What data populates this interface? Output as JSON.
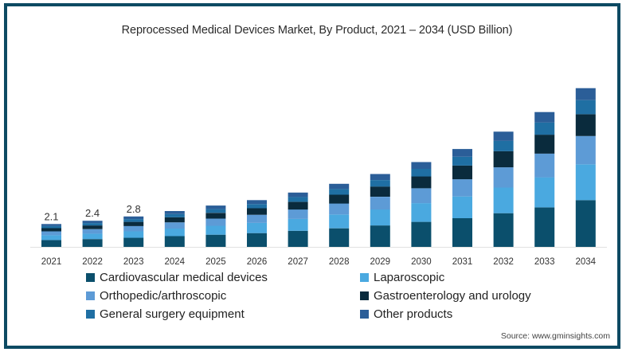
{
  "chart_data": {
    "type": "bar",
    "stacked": true,
    "title": "Reprocessed Medical Devices Market, By Product, 2021 – 2034 (USD Billion)",
    "xlabel": "",
    "ylabel": "",
    "ylim": [
      0,
      15
    ],
    "grid": false,
    "legend_position": "bottom",
    "categories": [
      "2021",
      "2022",
      "2023",
      "2024",
      "2025",
      "2026",
      "2027",
      "2028",
      "2029",
      "2030",
      "2031",
      "2032",
      "2033",
      "2034"
    ],
    "totals": [
      2.1,
      2.4,
      2.8,
      3.3,
      3.8,
      4.3,
      5.0,
      5.8,
      6.7,
      7.8,
      9.0,
      10.6,
      12.4,
      14.6
    ],
    "total_labels": [
      "2.1",
      "2.4",
      "2.8",
      "",
      "",
      "",
      "",
      "",
      "",
      "",
      "",
      "",
      "",
      ""
    ],
    "series": [
      {
        "name": "Cardiovascular medical devices",
        "color": "#0b4f6c",
        "values": [
          0.63,
          0.72,
          0.84,
          0.99,
          1.12,
          1.27,
          1.48,
          1.71,
          1.97,
          2.3,
          2.64,
          3.1,
          3.63,
          4.3
        ]
      },
      {
        "name": "Laparoscopic",
        "color": "#4aa9e0",
        "values": [
          0.44,
          0.5,
          0.59,
          0.7,
          0.82,
          0.93,
          1.09,
          1.27,
          1.47,
          1.72,
          2.0,
          2.36,
          2.77,
          3.3
        ]
      },
      {
        "name": "Orthopedic/arthroscopic",
        "color": "#5d9bd6",
        "values": [
          0.36,
          0.41,
          0.48,
          0.57,
          0.66,
          0.75,
          0.87,
          1.01,
          1.17,
          1.37,
          1.58,
          1.86,
          2.18,
          2.6
        ]
      },
      {
        "name": "Gastroenterology and urology",
        "color": "#0a2b3d",
        "values": [
          0.29,
          0.34,
          0.39,
          0.46,
          0.53,
          0.6,
          0.7,
          0.81,
          0.94,
          1.09,
          1.26,
          1.48,
          1.74,
          2.0
        ]
      },
      {
        "name": "General surgery equipment",
        "color": "#1f6fa3",
        "values": [
          0.19,
          0.22,
          0.26,
          0.3,
          0.34,
          0.39,
          0.45,
          0.52,
          0.6,
          0.7,
          0.81,
          0.95,
          1.11,
          1.3
        ]
      },
      {
        "name": "Other products",
        "color": "#2b5e98",
        "values": [
          0.19,
          0.21,
          0.24,
          0.28,
          0.33,
          0.36,
          0.41,
          0.48,
          0.55,
          0.62,
          0.71,
          0.85,
          0.97,
          1.1
        ]
      }
    ],
    "source": "Source: www.gminsights.com"
  }
}
